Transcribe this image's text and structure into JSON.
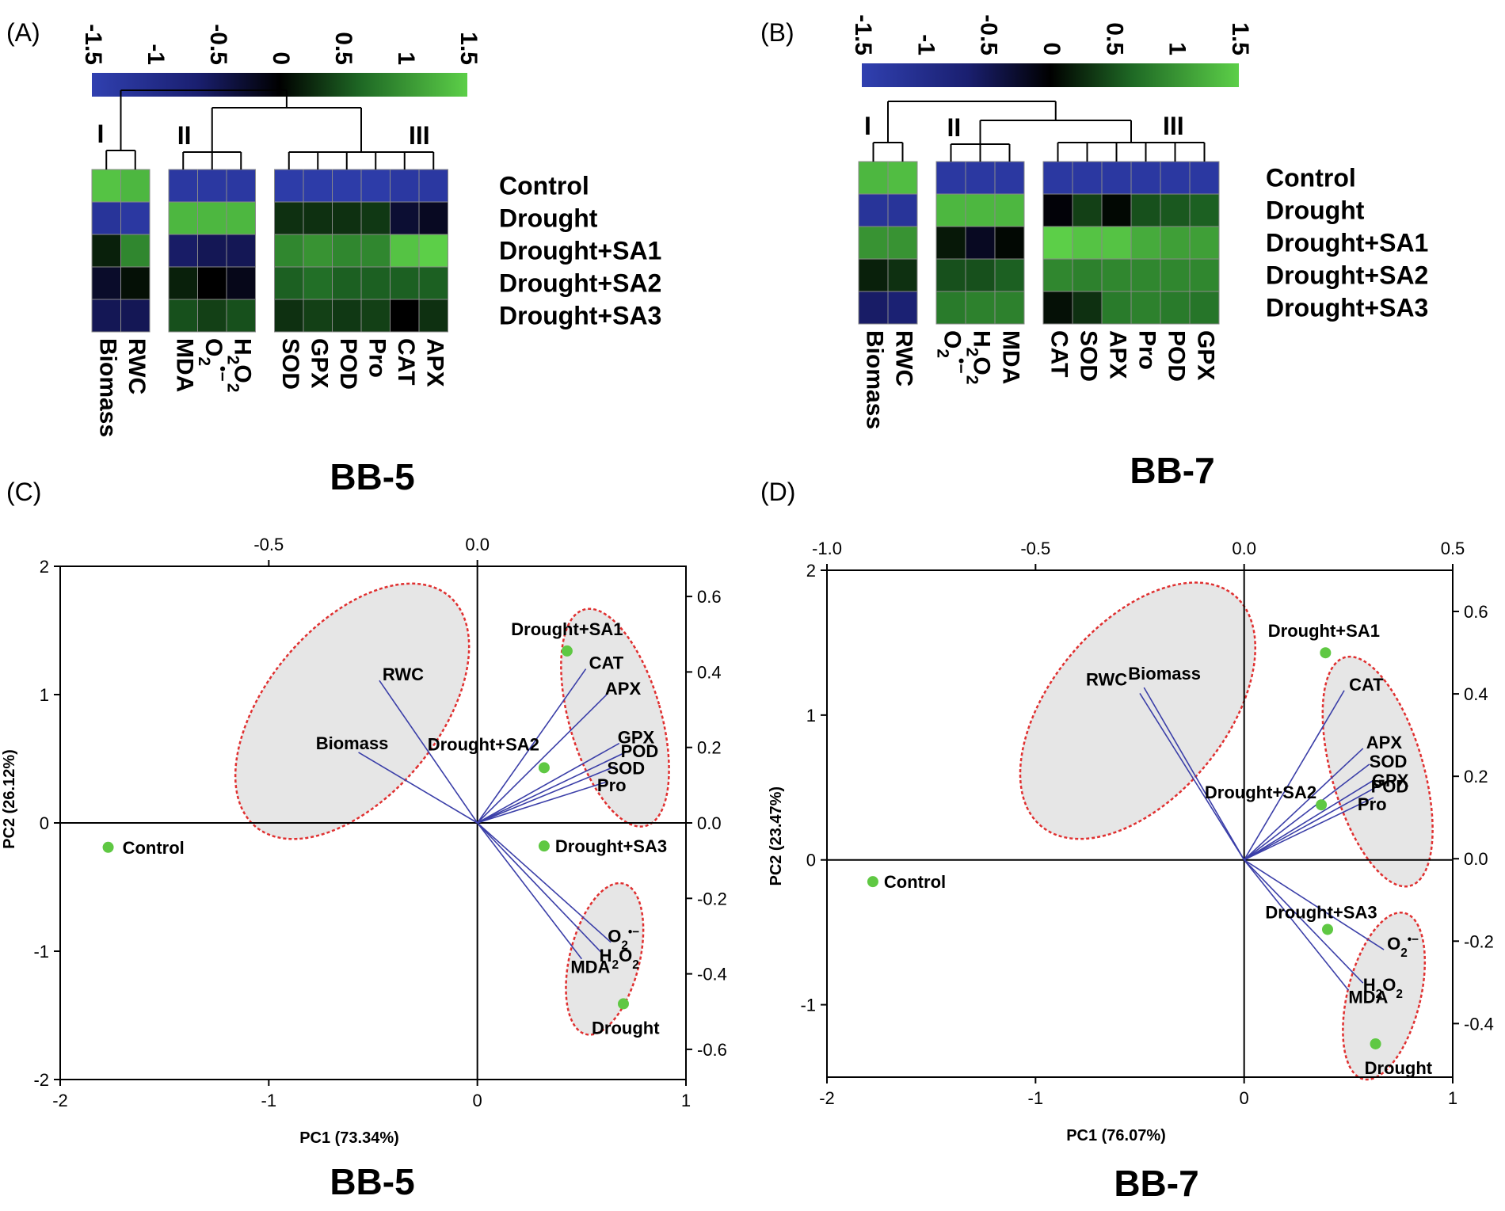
{
  "figure": {
    "panel_labels": [
      "(A)",
      "(B)",
      "(C)",
      "(D)"
    ],
    "colors": {
      "low": "#3040b0",
      "mid": "#000000",
      "high": "#5ccf48",
      "ellipse_fill": "#e6e6e6",
      "ellipse_stroke": "#e03030",
      "vector": "#3b3fa8",
      "point": "#5fc843"
    }
  },
  "chart_data": [
    {
      "type": "heatmap",
      "panel": "(A)",
      "title": "BB-5",
      "colorbar": {
        "ticks": [
          "-1.5",
          "-1",
          "-0.5",
          "0",
          "0.5",
          "1",
          "1.5"
        ],
        "range": [
          -1.5,
          1.5
        ]
      },
      "cluster_labels": [
        "I",
        "II",
        "III"
      ],
      "groups": [
        {
          "label": "I",
          "columns": [
            "Biomass",
            "RWC"
          ]
        },
        {
          "label": "II",
          "columns": [
            "MDA",
            "O2•−",
            "H2O2"
          ]
        },
        {
          "label": "III",
          "columns": [
            "SOD",
            "GPX",
            "POD",
            "Pro",
            "CAT",
            "APX"
          ]
        }
      ],
      "columns": [
        "Biomass",
        "RWC",
        "MDA",
        "O2•−",
        "H2O2",
        "SOD",
        "GPX",
        "POD",
        "Pro",
        "CAT",
        "APX"
      ],
      "rows": [
        "Control",
        "Drought",
        "Drought+SA1",
        "Drought+SA2",
        "Drought+SA3"
      ],
      "values": [
        [
          1.4,
          1.3,
          -1.3,
          -1.3,
          -1.3,
          -1.4,
          -1.4,
          -1.4,
          -1.4,
          -1.3,
          -1.3
        ],
        [
          -1.2,
          -1.3,
          1.3,
          1.3,
          1.3,
          0.3,
          0.3,
          0.3,
          0.35,
          -0.3,
          -0.2
        ],
        [
          0.2,
          0.9,
          -0.6,
          -0.5,
          -0.5,
          0.9,
          1.0,
          0.9,
          0.9,
          1.4,
          1.5
        ],
        [
          -0.25,
          0.1,
          0.2,
          0.0,
          -0.15,
          0.6,
          0.7,
          0.6,
          0.6,
          0.6,
          0.6
        ],
        [
          -0.5,
          -0.5,
          0.5,
          0.4,
          0.5,
          0.3,
          0.4,
          0.35,
          0.4,
          0.0,
          0.3
        ]
      ]
    },
    {
      "type": "heatmap",
      "panel": "(B)",
      "title": "BB-7",
      "colorbar": {
        "ticks": [
          "-1.5",
          "-1",
          "-0.5",
          "0",
          "0.5",
          "1",
          "1.5"
        ],
        "range": [
          -1.5,
          1.5
        ]
      },
      "cluster_labels": [
        "I",
        "II",
        "III"
      ],
      "groups": [
        {
          "label": "I",
          "columns": [
            "Biomass",
            "RWC"
          ]
        },
        {
          "label": "II",
          "columns": [
            "O2•−",
            "H2O2",
            "MDA"
          ]
        },
        {
          "label": "III",
          "columns": [
            "CAT",
            "SOD",
            "APX",
            "Pro",
            "POD",
            "GPX"
          ]
        }
      ],
      "columns": [
        "Biomass",
        "RWC",
        "O2•−",
        "H2O2",
        "MDA",
        "CAT",
        "SOD",
        "APX",
        "Pro",
        "POD",
        "GPX"
      ],
      "rows": [
        "Control",
        "Drought",
        "Drought+SA1",
        "Drought+SA2",
        "Drought+SA3"
      ],
      "values": [
        [
          1.3,
          1.35,
          -1.3,
          -1.3,
          -1.3,
          -1.3,
          -1.3,
          -1.3,
          -1.3,
          -1.3,
          -1.3
        ],
        [
          -1.2,
          -1.2,
          1.3,
          1.3,
          1.3,
          -0.05,
          0.4,
          0.05,
          0.5,
          0.55,
          0.6
        ],
        [
          1.0,
          1.0,
          0.15,
          -0.2,
          0.05,
          1.5,
          1.4,
          1.4,
          1.2,
          1.1,
          1.1
        ],
        [
          0.2,
          0.3,
          0.5,
          0.5,
          0.6,
          0.9,
          0.85,
          0.9,
          0.9,
          0.9,
          0.9
        ],
        [
          -0.6,
          -0.7,
          0.8,
          0.85,
          0.85,
          0.1,
          0.3,
          0.8,
          0.85,
          0.8,
          0.75
        ]
      ]
    },
    {
      "type": "scatter",
      "panel": "(C)",
      "title": "BB-5",
      "xlabel": "PC1 (73.34%)",
      "ylabel": "PC2 (26.12%)",
      "xlim": [
        -2,
        1
      ],
      "ylim": [
        -2,
        2
      ],
      "xticks": [
        -2,
        -1,
        0,
        1
      ],
      "yticks": [
        -2,
        -1,
        0,
        1,
        2
      ],
      "top_axis": {
        "range": [
          -1.0,
          0.5
        ],
        "ticks": [
          "-0.5",
          "0.0"
        ],
        "tick_values": [
          -0.5,
          0.0
        ]
      },
      "right_axis": {
        "range": [
          -0.68,
          0.68
        ],
        "ticks": [
          "0.6",
          "0.4",
          "0.2",
          "0.0",
          "-0.2",
          "-0.4",
          "-0.6"
        ],
        "tick_values": [
          0.6,
          0.4,
          0.2,
          0.0,
          -0.2,
          -0.4,
          -0.6
        ]
      },
      "scores": [
        {
          "label": "Control",
          "x": -1.77,
          "y": -0.19
        },
        {
          "label": "Drought+SA1",
          "x": 0.43,
          "y": 1.34
        },
        {
          "label": "Drought+SA2",
          "x": 0.32,
          "y": 0.43
        },
        {
          "label": "Drought+SA3",
          "x": 0.32,
          "y": -0.18
        },
        {
          "label": "Drought",
          "x": 0.7,
          "y": -1.41
        }
      ],
      "loadings": [
        {
          "label": "RWC",
          "x": -0.47,
          "y": 1.11
        },
        {
          "label": "Biomass",
          "x": -0.57,
          "y": 0.55
        },
        {
          "label": "CAT",
          "x": 0.52,
          "y": 1.2
        },
        {
          "label": "APX",
          "x": 0.62,
          "y": 1.0
        },
        {
          "label": "GPX",
          "x": 0.68,
          "y": 0.62
        },
        {
          "label": "POD",
          "x": 0.71,
          "y": 0.55
        },
        {
          "label": "SOD",
          "x": 0.66,
          "y": 0.44
        },
        {
          "label": "Pro",
          "x": 0.62,
          "y": 0.32
        },
        {
          "label": "O2•−",
          "x": 0.64,
          "y": -0.93
        },
        {
          "label": "H2O2",
          "x": 0.6,
          "y": -1.02
        },
        {
          "label": "MDA",
          "x": 0.5,
          "y": -1.06
        }
      ]
    },
    {
      "type": "scatter",
      "panel": "(D)",
      "title": "BB-7",
      "xlabel": "PC1 (76.07%)",
      "ylabel": "PC2 (23.47%)",
      "xlim": [
        -2,
        1
      ],
      "ylim": [
        -1.5,
        2
      ],
      "xticks": [
        -2,
        -1,
        0,
        1
      ],
      "yticks": [
        -1,
        0,
        1,
        2
      ],
      "top_axis": {
        "range": [
          -1.0,
          0.5
        ],
        "ticks": [
          "-1.0",
          "-0.5",
          "0.0",
          "0.5"
        ],
        "tick_values": [
          -1.0,
          -0.5,
          0.0,
          0.5
        ]
      },
      "right_axis": {
        "range": [
          -0.53,
          0.7
        ],
        "ticks": [
          "0.6",
          "0.4",
          "0.2",
          "0.0",
          "-0.2",
          "-0.4"
        ],
        "tick_values": [
          0.6,
          0.4,
          0.2,
          0.0,
          -0.2,
          -0.4
        ]
      },
      "scores": [
        {
          "label": "Control",
          "x": -1.78,
          "y": -0.15
        },
        {
          "label": "Drought+SA1",
          "x": 0.39,
          "y": 1.43
        },
        {
          "label": "Drought+SA2",
          "x": 0.37,
          "y": 0.38
        },
        {
          "label": "Drought+SA3",
          "x": 0.4,
          "y": -0.48
        },
        {
          "label": "Drought",
          "x": 0.63,
          "y": -1.27
        }
      ],
      "loadings": [
        {
          "label": "Biomass",
          "x": -0.48,
          "y": 1.19
        },
        {
          "label": "RWC",
          "x": -0.5,
          "y": 1.15
        },
        {
          "label": "CAT",
          "x": 0.48,
          "y": 1.17
        },
        {
          "label": "APX",
          "x": 0.57,
          "y": 0.77
        },
        {
          "label": "SOD",
          "x": 0.6,
          "y": 0.66
        },
        {
          "label": "GPX",
          "x": 0.62,
          "y": 0.55
        },
        {
          "label": "POD",
          "x": 0.63,
          "y": 0.5
        },
        {
          "label": "Pro",
          "x": 0.62,
          "y": 0.43
        },
        {
          "label": "O2•−",
          "x": 0.67,
          "y": -0.62
        },
        {
          "label": "H2O2",
          "x": 0.57,
          "y": -0.85
        },
        {
          "label": "MDA",
          "x": 0.5,
          "y": -0.9
        }
      ]
    }
  ]
}
